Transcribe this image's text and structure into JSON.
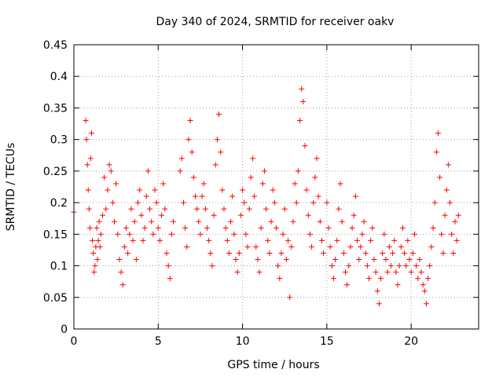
{
  "chart_data": {
    "type": "scatter",
    "title": "Day 340 of 2024, SRMTID for receiver oakv",
    "xlabel": "GPS time / hours",
    "ylabel": "SRMTID / TECUs",
    "xlim": [
      0,
      24
    ],
    "ylim": [
      0,
      0.45
    ],
    "x_ticks": [
      0,
      5,
      10,
      15,
      20
    ],
    "x_tick_labels": [
      "0",
      "5",
      "10",
      "15",
      "20"
    ],
    "y_ticks": [
      0,
      0.05,
      0.1,
      0.15,
      0.2,
      0.25,
      0.3,
      0.35,
      0.4,
      0.45
    ],
    "y_tick_labels": [
      "0",
      "0.05",
      "0.1",
      "0.15",
      "0.2",
      "0.25",
      "0.3",
      "0.35",
      "0.4",
      "0.45"
    ],
    "grid": true,
    "marker": "+",
    "series": [
      {
        "name": "SRMTID",
        "color": "#ff0000",
        "points": [
          [
            0.0,
            0.185
          ],
          [
            0.7,
            0.33
          ],
          [
            0.75,
            0.3
          ],
          [
            0.8,
            0.26
          ],
          [
            0.85,
            0.22
          ],
          [
            0.9,
            0.19
          ],
          [
            0.95,
            0.16
          ],
          [
            1.0,
            0.27
          ],
          [
            1.05,
            0.31
          ],
          [
            1.1,
            0.14
          ],
          [
            1.15,
            0.12
          ],
          [
            1.2,
            0.09
          ],
          [
            1.25,
            0.1
          ],
          [
            1.3,
            0.13
          ],
          [
            1.35,
            0.16
          ],
          [
            1.4,
            0.11
          ],
          [
            1.45,
            0.14
          ],
          [
            1.5,
            0.17
          ],
          [
            1.55,
            0.13
          ],
          [
            1.6,
            0.15
          ],
          [
            1.7,
            0.18
          ],
          [
            1.8,
            0.24
          ],
          [
            1.9,
            0.19
          ],
          [
            2.0,
            0.22
          ],
          [
            2.1,
            0.26
          ],
          [
            2.2,
            0.25
          ],
          [
            2.3,
            0.2
          ],
          [
            2.4,
            0.17
          ],
          [
            2.5,
            0.23
          ],
          [
            2.6,
            0.15
          ],
          [
            2.7,
            0.11
          ],
          [
            2.8,
            0.09
          ],
          [
            2.9,
            0.07
          ],
          [
            3.0,
            0.13
          ],
          [
            3.1,
            0.16
          ],
          [
            3.2,
            0.12
          ],
          [
            3.3,
            0.15
          ],
          [
            3.4,
            0.19
          ],
          [
            3.5,
            0.14
          ],
          [
            3.6,
            0.17
          ],
          [
            3.7,
            0.11
          ],
          [
            3.8,
            0.2
          ],
          [
            3.9,
            0.22
          ],
          [
            4.0,
            0.18
          ],
          [
            4.1,
            0.14
          ],
          [
            4.2,
            0.16
          ],
          [
            4.3,
            0.21
          ],
          [
            4.4,
            0.25
          ],
          [
            4.5,
            0.19
          ],
          [
            4.6,
            0.17
          ],
          [
            4.7,
            0.15
          ],
          [
            4.8,
            0.22
          ],
          [
            4.9,
            0.2
          ],
          [
            5.0,
            0.16
          ],
          [
            5.1,
            0.14
          ],
          [
            5.2,
            0.18
          ],
          [
            5.3,
            0.23
          ],
          [
            5.4,
            0.19
          ],
          [
            5.5,
            0.12
          ],
          [
            5.6,
            0.1
          ],
          [
            5.7,
            0.08
          ],
          [
            5.8,
            0.15
          ],
          [
            5.9,
            0.17
          ],
          [
            6.3,
            0.25
          ],
          [
            6.4,
            0.27
          ],
          [
            6.5,
            0.2
          ],
          [
            6.6,
            0.16
          ],
          [
            6.7,
            0.13
          ],
          [
            6.8,
            0.3
          ],
          [
            6.9,
            0.33
          ],
          [
            7.0,
            0.28
          ],
          [
            7.1,
            0.24
          ],
          [
            7.2,
            0.21
          ],
          [
            7.3,
            0.19
          ],
          [
            7.4,
            0.17
          ],
          [
            7.5,
            0.15
          ],
          [
            7.6,
            0.21
          ],
          [
            7.7,
            0.23
          ],
          [
            7.8,
            0.19
          ],
          [
            7.9,
            0.16
          ],
          [
            8.0,
            0.14
          ],
          [
            8.1,
            0.12
          ],
          [
            8.2,
            0.1
          ],
          [
            8.3,
            0.18
          ],
          [
            8.4,
            0.26
          ],
          [
            8.5,
            0.3
          ],
          [
            8.6,
            0.34
          ],
          [
            8.7,
            0.28
          ],
          [
            8.8,
            0.22
          ],
          [
            8.9,
            0.19
          ],
          [
            9.0,
            0.16
          ],
          [
            9.1,
            0.14
          ],
          [
            9.2,
            0.12
          ],
          [
            9.3,
            0.17
          ],
          [
            9.4,
            0.21
          ],
          [
            9.5,
            0.15
          ],
          [
            9.6,
            0.11
          ],
          [
            9.7,
            0.09
          ],
          [
            9.8,
            0.12
          ],
          [
            9.9,
            0.18
          ],
          [
            10.0,
            0.22
          ],
          [
            10.1,
            0.2
          ],
          [
            10.2,
            0.15
          ],
          [
            10.3,
            0.13
          ],
          [
            10.4,
            0.19
          ],
          [
            10.5,
            0.24
          ],
          [
            10.6,
            0.27
          ],
          [
            10.7,
            0.21
          ],
          [
            10.8,
            0.13
          ],
          [
            10.9,
            0.11
          ],
          [
            11.0,
            0.09
          ],
          [
            11.1,
            0.16
          ],
          [
            11.2,
            0.23
          ],
          [
            11.3,
            0.25
          ],
          [
            11.4,
            0.19
          ],
          [
            11.5,
            0.14
          ],
          [
            11.6,
            0.12
          ],
          [
            11.7,
            0.17
          ],
          [
            11.8,
            0.22
          ],
          [
            11.9,
            0.2
          ],
          [
            12.0,
            0.16
          ],
          [
            12.1,
            0.1
          ],
          [
            12.2,
            0.08
          ],
          [
            12.3,
            0.12
          ],
          [
            12.4,
            0.15
          ],
          [
            12.5,
            0.19
          ],
          [
            12.6,
            0.11
          ],
          [
            12.7,
            0.14
          ],
          [
            12.8,
            0.05
          ],
          [
            12.9,
            0.13
          ],
          [
            13.0,
            0.17
          ],
          [
            13.1,
            0.23
          ],
          [
            13.2,
            0.2
          ],
          [
            13.3,
            0.25
          ],
          [
            13.4,
            0.33
          ],
          [
            13.5,
            0.38
          ],
          [
            13.6,
            0.36
          ],
          [
            13.7,
            0.29
          ],
          [
            13.8,
            0.22
          ],
          [
            13.9,
            0.18
          ],
          [
            14.0,
            0.15
          ],
          [
            14.1,
            0.13
          ],
          [
            14.2,
            0.2
          ],
          [
            14.3,
            0.24
          ],
          [
            14.4,
            0.27
          ],
          [
            14.5,
            0.21
          ],
          [
            14.6,
            0.17
          ],
          [
            14.7,
            0.14
          ],
          [
            14.8,
            0.12
          ],
          [
            15.0,
            0.2
          ],
          [
            15.1,
            0.16
          ],
          [
            15.2,
            0.13
          ],
          [
            15.3,
            0.1
          ],
          [
            15.4,
            0.08
          ],
          [
            15.5,
            0.11
          ],
          [
            15.6,
            0.14
          ],
          [
            15.7,
            0.19
          ],
          [
            15.8,
            0.23
          ],
          [
            15.9,
            0.17
          ],
          [
            16.0,
            0.12
          ],
          [
            16.1,
            0.09
          ],
          [
            16.2,
            0.07
          ],
          [
            16.3,
            0.1
          ],
          [
            16.4,
            0.13
          ],
          [
            16.5,
            0.16
          ],
          [
            16.6,
            0.18
          ],
          [
            16.7,
            0.21
          ],
          [
            16.8,
            0.14
          ],
          [
            16.9,
            0.11
          ],
          [
            17.0,
            0.13
          ],
          [
            17.1,
            0.15
          ],
          [
            17.2,
            0.17
          ],
          [
            17.3,
            0.12
          ],
          [
            17.4,
            0.1
          ],
          [
            17.5,
            0.08
          ],
          [
            17.6,
            0.14
          ],
          [
            17.7,
            0.16
          ],
          [
            17.8,
            0.11
          ],
          [
            17.9,
            0.09
          ],
          [
            18.0,
            0.06
          ],
          [
            18.1,
            0.04
          ],
          [
            18.2,
            0.08
          ],
          [
            18.3,
            0.12
          ],
          [
            18.4,
            0.15
          ],
          [
            18.5,
            0.11
          ],
          [
            18.6,
            0.09
          ],
          [
            18.7,
            0.13
          ],
          [
            18.8,
            0.1
          ],
          [
            18.9,
            0.12
          ],
          [
            19.0,
            0.14
          ],
          [
            19.1,
            0.09
          ],
          [
            19.2,
            0.07
          ],
          [
            19.3,
            0.1
          ],
          [
            19.4,
            0.13
          ],
          [
            19.5,
            0.16
          ],
          [
            19.6,
            0.12
          ],
          [
            19.7,
            0.1
          ],
          [
            19.8,
            0.14
          ],
          [
            19.9,
            0.11
          ],
          [
            20.0,
            0.09
          ],
          [
            20.1,
            0.12
          ],
          [
            20.2,
            0.15
          ],
          [
            20.3,
            0.1
          ],
          [
            20.4,
            0.08
          ],
          [
            20.5,
            0.11
          ],
          [
            20.6,
            0.09
          ],
          [
            20.7,
            0.07
          ],
          [
            20.8,
            0.06
          ],
          [
            20.9,
            0.04
          ],
          [
            21.0,
            0.08
          ],
          [
            21.1,
            0.1
          ],
          [
            21.2,
            0.13
          ],
          [
            21.3,
            0.16
          ],
          [
            21.4,
            0.2
          ],
          [
            21.5,
            0.28
          ],
          [
            21.6,
            0.31
          ],
          [
            21.7,
            0.24
          ],
          [
            21.8,
            0.15
          ],
          [
            21.9,
            0.12
          ],
          [
            22.0,
            0.18
          ],
          [
            22.1,
            0.22
          ],
          [
            22.2,
            0.26
          ],
          [
            22.3,
            0.2
          ],
          [
            22.4,
            0.15
          ],
          [
            22.5,
            0.12
          ],
          [
            22.6,
            0.17
          ],
          [
            22.7,
            0.14
          ],
          [
            22.8,
            0.18
          ]
        ]
      }
    ]
  }
}
